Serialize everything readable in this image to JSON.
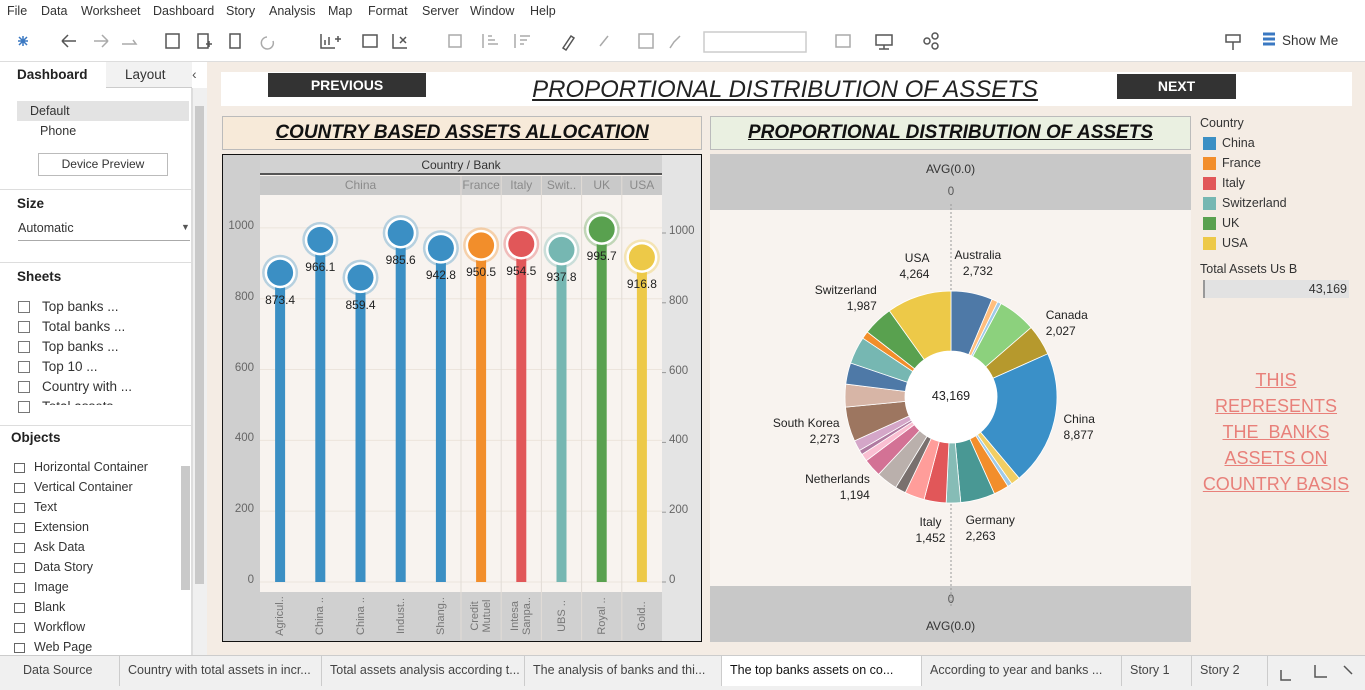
{
  "menu": [
    "File",
    "Data",
    "Worksheet",
    "Dashboard",
    "Story",
    "Analysis",
    "Map",
    "Format",
    "Server",
    "Window",
    "Help"
  ],
  "toolbar": {
    "show_me": "Show Me"
  },
  "left_panel": {
    "tabs": [
      "Dashboard",
      "Layout"
    ],
    "devices": [
      "Default",
      "Phone"
    ],
    "device_preview": "Device Preview",
    "size_title": "Size",
    "size_value": "Automatic",
    "sheets_title": "Sheets",
    "sheets": [
      "Top banks ...",
      "Total banks ...",
      "Top banks ...",
      "Top 10 ...",
      "Country with ...",
      "Total assets"
    ],
    "objects_title": "Objects",
    "objects": [
      "Horizontal Container",
      "Vertical Container",
      "Text",
      "Extension",
      "Ask Data",
      "Data Story",
      "Image",
      "Blank",
      "Workflow",
      "Web Page"
    ]
  },
  "dashboard": {
    "previous": "PREVIOUS",
    "next": "NEXT",
    "title": "PROPORTIONAL DISTRIBUTION OF ASSETS",
    "note": [
      "THIS",
      "REPRESENTS",
      "THE  BANKS",
      "ASSETS ON",
      "COUNTRY BASIS"
    ]
  },
  "chart_data": [
    {
      "type": "lollipop",
      "title": "COUNTRY BASED ASSETS ALLOCATION",
      "header": "Country / Bank",
      "countries": [
        "China",
        "China",
        "China",
        "China",
        "China",
        "France",
        "Italy",
        "Swit..",
        "UK",
        "USA"
      ],
      "categories": [
        "Agricul..",
        "China ..",
        "China ..",
        "Indust..",
        "Shang..",
        "Credit Mutuel",
        "Intesa Sanpa..",
        "UBS ..",
        "Royal ..",
        "Gold.."
      ],
      "values": [
        873.4,
        966.1,
        859.4,
        985.6,
        942.8,
        950.5,
        954.5,
        937.8,
        995.7,
        916.8
      ],
      "colors": [
        "#3b8fc4",
        "#3b8fc4",
        "#3b8fc4",
        "#3b8fc4",
        "#3b8fc4",
        "#f28e2b",
        "#e15759",
        "#76b7b2",
        "#59a14f",
        "#edc948"
      ],
      "ylim": [
        0,
        1090
      ],
      "yticks": [
        0,
        200,
        400,
        600,
        800,
        1000
      ],
      "y2lim": [
        0,
        1106
      ],
      "y2ticks": [
        0,
        200,
        400,
        600,
        800,
        1000
      ],
      "grid": true
    },
    {
      "type": "pie",
      "title": "PROPORTIONAL DISTRIBUTION OF ASSETS",
      "axis_title": "AVG(0.0)",
      "xticks": [
        0
      ],
      "categories": [
        "Australia",
        null,
        null,
        null,
        "Canada",
        "China",
        null,
        null,
        null,
        "Germany",
        null,
        "Italy",
        null,
        null,
        null,
        "Netherlands",
        null,
        null,
        null,
        "South Korea",
        null,
        null,
        null,
        null,
        "Switzerland",
        "USA"
      ],
      "values": [
        2732,
        400,
        250,
        2500,
        2027,
        8877,
        600,
        300,
        1000,
        2263,
        950,
        1452,
        1300,
        700,
        1400,
        1194,
        500,
        300,
        700,
        2273,
        1500,
        1400,
        1800,
        500,
        1987,
        4264
      ],
      "value_labels": [
        "2,732",
        null,
        null,
        null,
        "2,027",
        "8,877",
        null,
        null,
        null,
        "2,263",
        null,
        "1,452",
        null,
        null,
        null,
        "1,194",
        null,
        null,
        null,
        "2,273",
        null,
        null,
        null,
        null,
        "1,987",
        "4,264"
      ],
      "colors": [
        "#4e79a7",
        "#ffbe7d",
        "#a0cbe8",
        "#8cd17d",
        "#b6992d",
        "#3a90c8",
        "#f1ce63",
        "#a0cbe8",
        "#f28e2b",
        "#499894",
        "#86bcb6",
        "#e15759",
        "#ff9d9a",
        "#79706e",
        "#bab0ac",
        "#d37295",
        "#fabfd2",
        "#b07aa1",
        "#d4a6c8",
        "#9d7660",
        "#d7b5a6",
        "#4e79a7",
        "#76b7b2",
        "#f28e2b",
        "#59a14f",
        "#edc948"
      ],
      "center_value": 43169,
      "center_label": "43,169"
    }
  ],
  "legend": {
    "title": "Country",
    "items": [
      {
        "name": "China",
        "color": "#3b8fc4"
      },
      {
        "name": "France",
        "color": "#f28e2b"
      },
      {
        "name": "Italy",
        "color": "#e15759"
      },
      {
        "name": "Switzerland",
        "color": "#76b7b2"
      },
      {
        "name": "UK",
        "color": "#59a14f"
      },
      {
        "name": "USA",
        "color": "#edc948"
      }
    ]
  },
  "total": {
    "title": "Total Assets Us B",
    "value": 43169,
    "label": "43,169"
  },
  "tabs": {
    "items": [
      "Data Source",
      "Country with total assets in incr...",
      "Total assets analysis according t...",
      "The analysis of banks and thi...",
      "The top banks assets on co...",
      "According to year and banks ...",
      "Story 1",
      "Story 2"
    ],
    "active": 4
  }
}
